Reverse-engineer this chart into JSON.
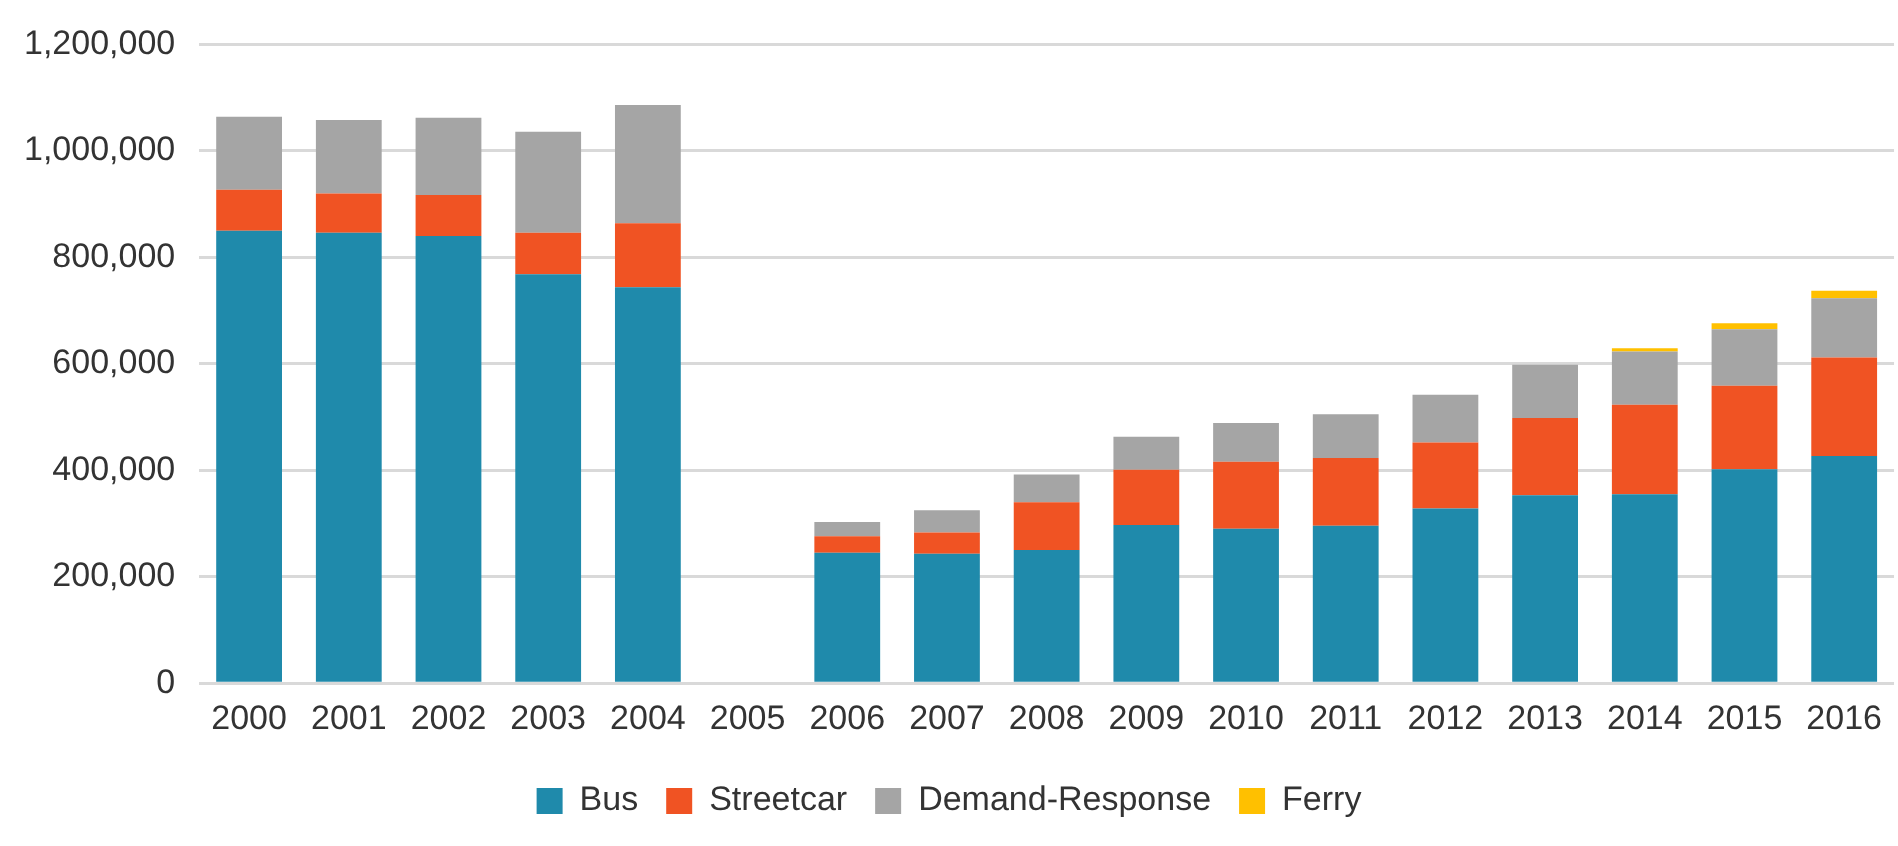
{
  "chart_data": {
    "type": "bar",
    "stacked": true,
    "categories": [
      "2000",
      "2001",
      "2002",
      "2003",
      "2004",
      "2005",
      "2006",
      "2007",
      "2008",
      "2009",
      "2010",
      "2011",
      "2012",
      "2013",
      "2014",
      "2015",
      "2016"
    ],
    "series": [
      {
        "name": "Bus",
        "color": "#1f8aab",
        "values": [
          850000,
          846000,
          840000,
          768000,
          744000,
          null,
          245000,
          243000,
          250000,
          297000,
          290000,
          296000,
          328000,
          353000,
          355000,
          402000,
          427000
        ]
      },
      {
        "name": "Streetcar",
        "color": "#f05323",
        "values": [
          77000,
          74000,
          77000,
          78000,
          120000,
          null,
          31000,
          40000,
          90000,
          104000,
          126000,
          127000,
          124000,
          145000,
          168000,
          157000,
          185000
        ]
      },
      {
        "name": "Demand-Response",
        "color": "#a5a5a5",
        "values": [
          137000,
          138000,
          145000,
          190000,
          222000,
          null,
          27000,
          42000,
          52000,
          62000,
          73000,
          82000,
          90000,
          100000,
          100000,
          106000,
          111000
        ]
      },
      {
        "name": "Ferry",
        "color": "#ffc000",
        "values": [
          null,
          null,
          null,
          null,
          null,
          null,
          null,
          null,
          null,
          null,
          null,
          null,
          null,
          null,
          6000,
          11000,
          14000
        ]
      }
    ],
    "ylim": [
      0,
      1200000
    ],
    "yticks": [
      0,
      {
        "value": 200000,
        "label": "200,000"
      },
      {
        "value": 400000,
        "label": "400,000"
      },
      {
        "value": 600000,
        "label": "600,000"
      },
      {
        "value": 800000,
        "label": "800,000"
      },
      {
        "value": 1000000,
        "label": "1,000,000"
      },
      {
        "value": 1200000,
        "label": "1,200,000"
      }
    ],
    "grid": "y",
    "legend": "bottom"
  }
}
